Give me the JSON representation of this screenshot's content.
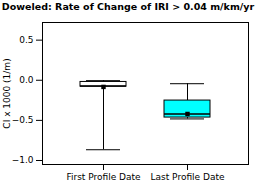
{
  "chart_data": {
    "type": "box",
    "title": "Doweled: Rate of Change of IRI > 0.04 m/km/yr",
    "ylabel": "CI x 1000 (1/m)",
    "categories": [
      "First Profile Date",
      "Last Profile Date"
    ],
    "boxes": [
      {
        "q1": -0.08,
        "median": -0.073,
        "q3": -0.021,
        "whisker_low": -0.866,
        "whisker_high": -0.005,
        "mean": -0.083,
        "color": "white"
      },
      {
        "q1": -0.465,
        "median": -0.42,
        "q3": -0.253,
        "whisker_low": -0.482,
        "whisker_high": -0.043,
        "mean": -0.42,
        "color": "cyan"
      }
    ],
    "ylim": [
      -1.05,
      0.72
    ],
    "yticks": [
      {
        "value": -1.0,
        "label": "−1.0"
      },
      {
        "value": -0.5,
        "label": "−0.5"
      },
      {
        "value": 0.0,
        "label": "0.0"
      },
      {
        "value": 0.5,
        "label": "0.5"
      }
    ]
  }
}
